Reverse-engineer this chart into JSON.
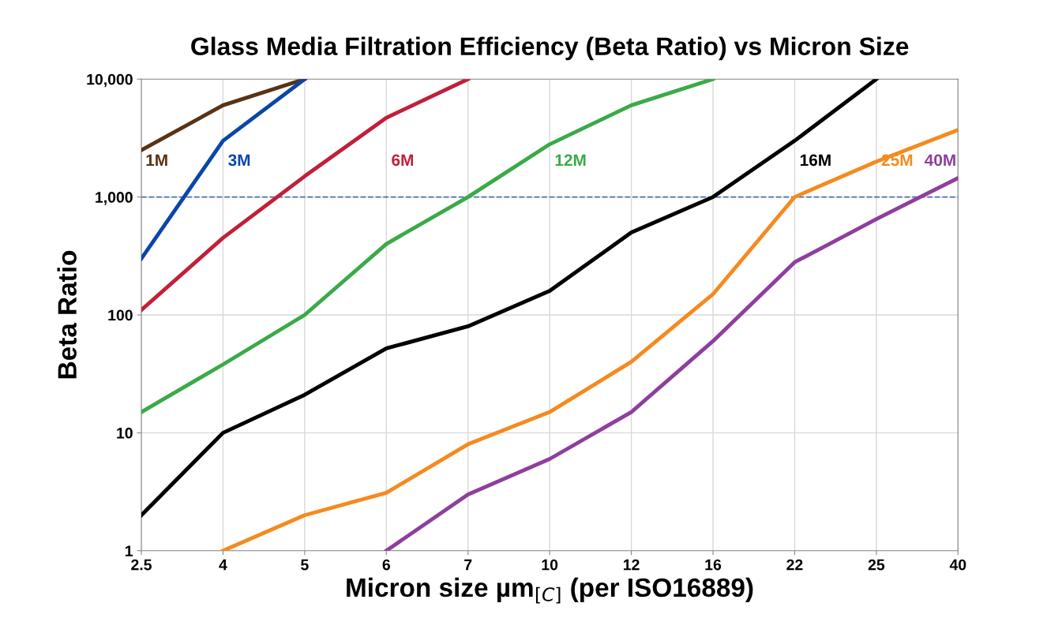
{
  "chart_data": {
    "type": "line",
    "title": "Glass Media Filtration Efficiency (Beta Ratio) vs Micron Size",
    "xlabel": "Micron size µm$_{[C]}$ (per ISO16889)",
    "ylabel": "Beta Ratio",
    "categories": [
      "2.5",
      "4",
      "5",
      "6",
      "7",
      "10",
      "12",
      "16",
      "22",
      "25",
      "40"
    ],
    "log": "y",
    "ylim": [
      1,
      10000
    ],
    "yticks": [
      1,
      10,
      100,
      {
        "value": 1000,
        "label": "1,000"
      },
      {
        "value": 10000,
        "label": "10,000"
      }
    ],
    "grid": true,
    "legend": false,
    "marker": "none",
    "line_style": "solid",
    "ref_lines": [
      {
        "axis": "y",
        "value": 1000,
        "color": "#4a6fb0",
        "line_style": "dashed"
      }
    ],
    "series": [
      {
        "name": "1M",
        "color": "#5a3214",
        "values": [
          2500,
          6000,
          10000,
          null,
          null,
          null,
          null,
          null,
          null,
          null,
          null
        ]
      },
      {
        "name": "3M",
        "color": "#0a46a8",
        "values": [
          300,
          3000,
          10000,
          null,
          null,
          null,
          null,
          null,
          null,
          null,
          null
        ]
      },
      {
        "name": "6M",
        "color": "#c0203a",
        "values": [
          110,
          450,
          1500,
          4700,
          10000,
          null,
          null,
          null,
          null,
          null,
          null
        ]
      },
      {
        "name": "12M",
        "color": "#3aaa48",
        "values": [
          15,
          38,
          100,
          400,
          1000,
          2800,
          6000,
          10000,
          null,
          null,
          null
        ]
      },
      {
        "name": "16M",
        "color": "#000000",
        "values": [
          2,
          10,
          21,
          52,
          80,
          160,
          500,
          1000,
          3000,
          10000,
          null
        ]
      },
      {
        "name": "25M",
        "color": "#f58a1f",
        "values": [
          null,
          1,
          2,
          3.1,
          8,
          15,
          40,
          150,
          1000,
          2000,
          3700
        ]
      },
      {
        "name": "40M",
        "color": "#8e3f9e",
        "values": [
          null,
          null,
          null,
          1,
          3,
          6,
          15,
          60,
          280,
          650,
          1450
        ]
      }
    ]
  }
}
